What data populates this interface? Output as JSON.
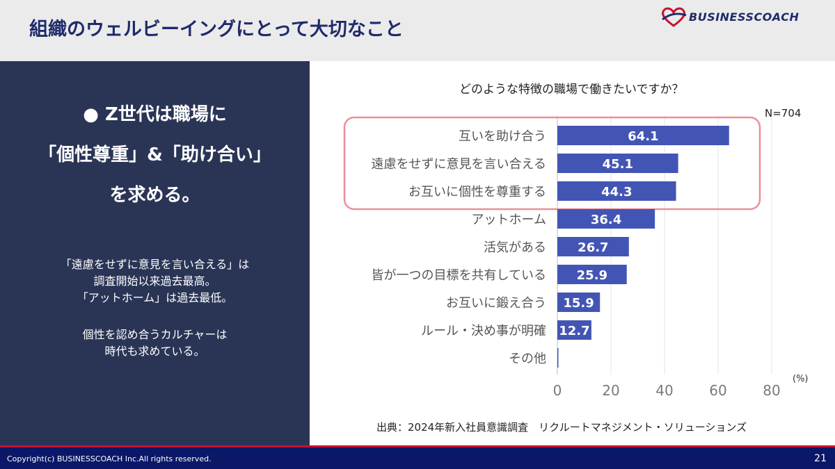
{
  "header": {
    "title": "組織のウェルビーイングにとって大切なこと",
    "logo_text": "BUSINESSCOACH"
  },
  "left_panel": {
    "headline": [
      "● Z世代は職場に",
      "「個性尊重」&「助け合い」",
      "を求める。"
    ],
    "paragraph1": [
      "「遠慮をせずに意見を言い合える」は",
      "調査開始以来過去最高。",
      "「アットホーム」は過去最低。"
    ],
    "paragraph2": [
      "個性を認め合うカルチャーは",
      "時代も求めている。"
    ]
  },
  "chart_data": {
    "type": "bar",
    "orientation": "horizontal",
    "title": "どのような特徴の職場で働きたいですか？",
    "n_label": "N=704",
    "categories": [
      "互いを助け合う",
      "遠慮をせずに意見を言い合える",
      "お互いに個性を尊重する",
      "アットホーム",
      "活気がある",
      "皆が一つの目標を共有している",
      "お互いに鍛え合う",
      "ルール・決め事が明確",
      "その他"
    ],
    "values": [
      64.1,
      45.1,
      44.3,
      36.4,
      26.7,
      25.9,
      15.9,
      12.7,
      0.3
    ],
    "value_labels": [
      "64.1",
      "45.1",
      "44.3",
      "36.4",
      "26.7",
      "25.9",
      "15.9",
      "12.7",
      ""
    ],
    "xlim": [
      0,
      80
    ],
    "xticks": [
      "0",
      "20",
      "40",
      "60",
      "80"
    ],
    "xunit": "(%)",
    "grid": true,
    "highlight": {
      "categories": [
        "互いを助け合う",
        "遠慮をせずに意見を言い合える",
        "お互いに個性を尊重する"
      ],
      "color": "#ee8e96"
    },
    "bar_color": "#4355b4"
  },
  "source": "出典：2024年新入社員意識調査　リクルートマネジメント・ソリューションズ",
  "footer": {
    "copyright": "Copyright(c) BUSINESSCOACH Inc.All rights reserved.",
    "page": "21"
  }
}
